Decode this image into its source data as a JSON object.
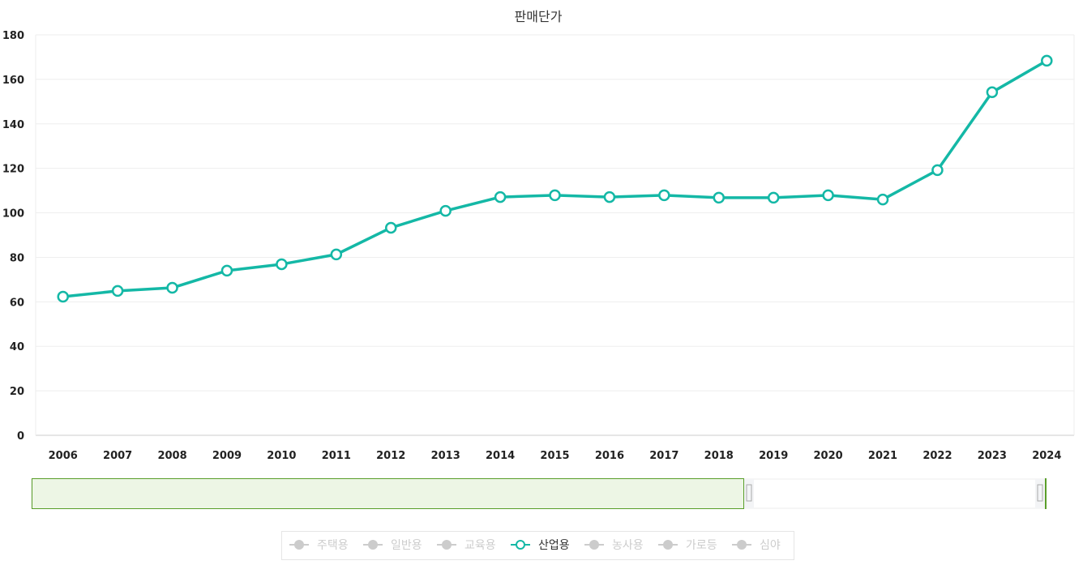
{
  "chart_data": {
    "type": "line",
    "title": "판매단가",
    "categories": [
      "2006",
      "2007",
      "2008",
      "2009",
      "2010",
      "2011",
      "2012",
      "2013",
      "2014",
      "2015",
      "2016",
      "2017",
      "2018",
      "2019",
      "2020",
      "2021",
      "2022",
      "2023",
      "2024"
    ],
    "series": [
      {
        "name": "산업용",
        "color": "#14b8a6",
        "values": [
          62.3,
          64.9,
          66.3,
          74.0,
          76.9,
          81.3,
          93.3,
          100.9,
          107.1,
          107.9,
          107.1,
          107.9,
          106.8,
          106.8,
          107.9,
          106.0,
          119.2,
          154.2,
          168.4
        ]
      }
    ],
    "ylim": [
      0,
      180
    ],
    "yticks": [
      0,
      20,
      40,
      60,
      80,
      100,
      120,
      140,
      160,
      180
    ],
    "grid": true,
    "legend": {
      "placement": "bottom",
      "items": [
        {
          "label": "주택용",
          "active": false
        },
        {
          "label": "일반용",
          "active": false
        },
        {
          "label": "교육용",
          "active": false
        },
        {
          "label": "산업용",
          "active": true
        },
        {
          "label": "농사용",
          "active": false
        },
        {
          "label": "가로등",
          "active": false
        },
        {
          "label": "심야",
          "active": false
        }
      ]
    },
    "data_zoom": {
      "present": true
    }
  }
}
